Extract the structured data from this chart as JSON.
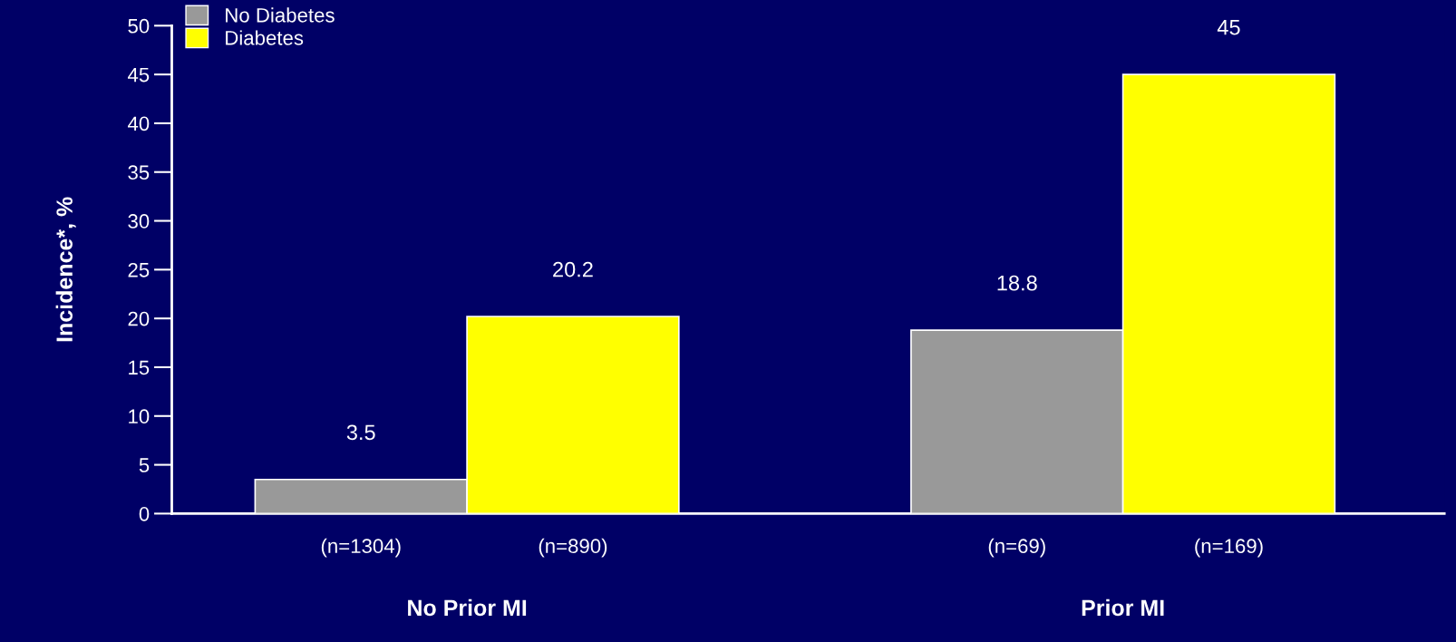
{
  "chart_data": {
    "type": "bar",
    "ylabel": "Incidence*, %",
    "categories": [
      "No Prior MI",
      "Prior MI"
    ],
    "series": [
      {
        "name": "No Diabetes",
        "color": "#999999",
        "values": [
          3.5,
          18.8
        ]
      },
      {
        "name": "Diabetes",
        "color": "#ffff00",
        "values": [
          20.2,
          45
        ]
      }
    ],
    "ylim": [
      0,
      50
    ],
    "yticks": [
      0,
      5,
      10,
      15,
      20,
      25,
      30,
      35,
      40,
      45,
      50
    ],
    "data_labels": true,
    "legend": "top left",
    "grid": false,
    "annotations": [
      "(n=1304)",
      "(n=890)",
      "(n=69)",
      "(n=169)"
    ]
  }
}
